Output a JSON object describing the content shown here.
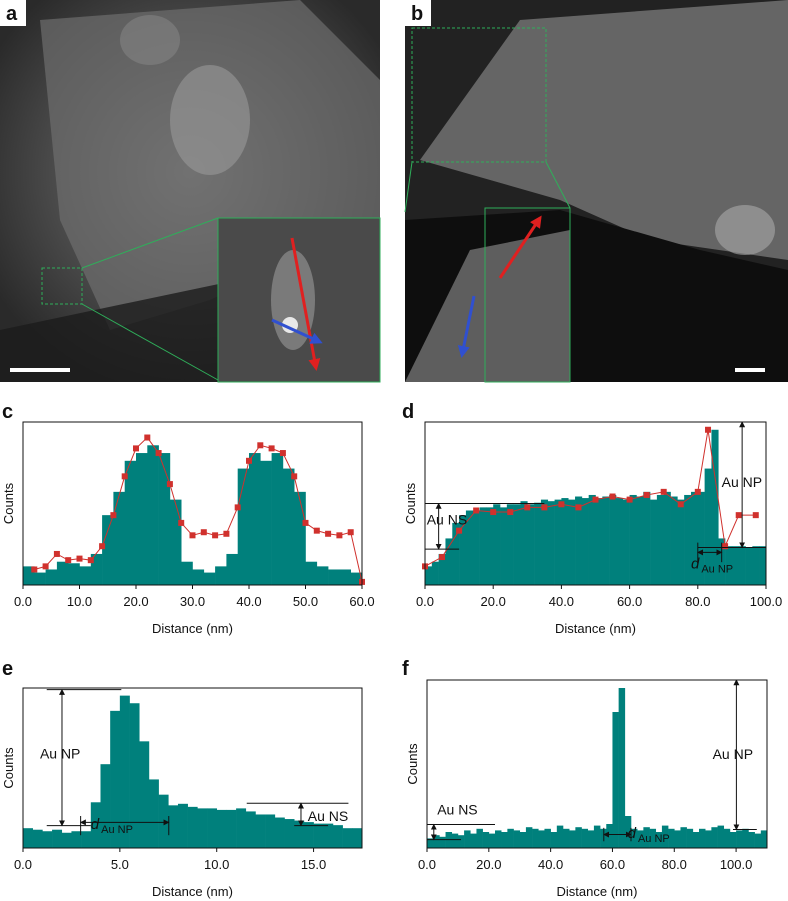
{
  "images": [
    {
      "label": "a"
    },
    {
      "label": "b"
    }
  ],
  "chart_data": [
    {
      "type": "histogram",
      "panel_label": "c",
      "xlabel": "Distance (nm)",
      "ylabel": "Counts",
      "xlim": [
        0,
        60
      ],
      "ylim": [
        0,
        105
      ],
      "xticks": [
        {
          "value": 0,
          "label": "0.0"
        },
        {
          "value": 10,
          "label": "10.0"
        },
        {
          "value": 20,
          "label": "20.0"
        },
        {
          "value": 30,
          "label": "30.0"
        },
        {
          "value": 40,
          "label": "40.0"
        },
        {
          "value": 50,
          "label": "50.0"
        },
        {
          "value": 60,
          "label": "60.0"
        }
      ],
      "bins": [
        0,
        2,
        4,
        6,
        8,
        10,
        12,
        14,
        16,
        18,
        20,
        22,
        24,
        26,
        28,
        30,
        32,
        34,
        36,
        38,
        40,
        42,
        44,
        46,
        48,
        50,
        52,
        54,
        56,
        58,
        60
      ],
      "values": [
        12,
        8,
        10,
        15,
        14,
        12,
        20,
        45,
        60,
        80,
        85,
        90,
        85,
        55,
        15,
        10,
        8,
        12,
        20,
        75,
        85,
        80,
        85,
        75,
        60,
        15,
        12,
        10,
        10,
        8
      ],
      "color": "#00807c",
      "line": {
        "color": "#d0312d",
        "x": [
          2,
          4,
          6,
          8,
          10,
          12,
          14,
          16,
          18,
          20,
          22,
          24,
          26,
          28,
          30,
          32,
          34,
          36,
          38,
          40,
          42,
          44,
          46,
          48,
          50,
          52,
          54,
          56,
          58,
          60
        ],
        "values": [
          10,
          12,
          20,
          16,
          17,
          16,
          25,
          45,
          70,
          88,
          95,
          85,
          65,
          40,
          32,
          34,
          32,
          33,
          50,
          80,
          90,
          88,
          85,
          70,
          40,
          35,
          33,
          32,
          34,
          2
        ]
      },
      "annotations": []
    },
    {
      "type": "histogram",
      "panel_label": "d",
      "xlabel": "Distance (nm)",
      "ylabel": "Counts",
      "xlim": [
        0,
        100
      ],
      "ylim": [
        0,
        105
      ],
      "xticks": [
        {
          "value": 0,
          "label": "0.0"
        },
        {
          "value": 20,
          "label": "20.0"
        },
        {
          "value": 40,
          "label": "40.0"
        },
        {
          "value": 60,
          "label": "60.0"
        },
        {
          "value": 80,
          "label": "80.0"
        },
        {
          "value": 100,
          "label": "100.0"
        }
      ],
      "bins": [
        0,
        2,
        4,
        6,
        8,
        10,
        12,
        14,
        16,
        18,
        20,
        22,
        24,
        26,
        28,
        30,
        32,
        34,
        36,
        38,
        40,
        42,
        44,
        46,
        48,
        50,
        52,
        54,
        56,
        58,
        60,
        62,
        64,
        66,
        68,
        70,
        72,
        74,
        76,
        78,
        80,
        82,
        84,
        86,
        88,
        90,
        92,
        94,
        96,
        98,
        100
      ],
      "values": [
        12,
        15,
        20,
        30,
        40,
        45,
        48,
        48,
        50,
        50,
        52,
        50,
        52,
        52,
        54,
        52,
        53,
        55,
        54,
        55,
        56,
        55,
        57,
        56,
        58,
        56,
        57,
        58,
        56,
        55,
        58,
        57,
        60,
        55,
        58,
        60,
        57,
        55,
        58,
        60,
        60,
        75,
        100,
        30,
        25,
        25,
        25,
        24,
        25,
        25
      ],
      "color": "#00807c",
      "line": {
        "color": "#d0312d",
        "x": [
          0,
          5,
          10,
          15,
          20,
          25,
          30,
          35,
          40,
          45,
          50,
          55,
          60,
          65,
          70,
          75,
          80,
          83,
          88,
          92,
          97
        ],
        "values": [
          12,
          18,
          35,
          48,
          47,
          47,
          50,
          50,
          52,
          50,
          55,
          57,
          55,
          58,
          60,
          52,
          60,
          100,
          25,
          45,
          45
        ]
      },
      "annotations": [
        {
          "text": "Au NS"
        },
        {
          "text": "Au NP"
        },
        {
          "text": "d",
          "subscript": "Au NP"
        }
      ]
    },
    {
      "type": "histogram",
      "panel_label": "e",
      "xlabel": "Distance (nm)",
      "ylabel": "Counts",
      "xlim": [
        0,
        17.5
      ],
      "ylim": [
        0,
        105
      ],
      "xticks": [
        {
          "value": 0,
          "label": "0.0"
        },
        {
          "value": 5,
          "label": "5.0"
        },
        {
          "value": 10,
          "label": "10.0"
        },
        {
          "value": 15,
          "label": "15.0"
        }
      ],
      "bins": [
        0,
        0.5,
        1,
        1.5,
        2,
        2.5,
        3,
        3.5,
        4,
        4.5,
        5,
        5.5,
        6,
        6.5,
        7,
        7.5,
        8,
        8.5,
        9,
        9.5,
        10,
        10.5,
        11,
        11.5,
        12,
        12.5,
        13,
        13.5,
        14,
        14.5,
        15,
        15.5,
        16,
        16.5,
        17,
        17.5
      ],
      "values": [
        13,
        12,
        11,
        12,
        10,
        11,
        11,
        30,
        55,
        90,
        100,
        95,
        70,
        45,
        35,
        28,
        29,
        27,
        26,
        26,
        25,
        25,
        26,
        24,
        22,
        22,
        20,
        19,
        18,
        17,
        16,
        16,
        15,
        13,
        13
      ],
      "color": "#00807c",
      "annotations": [
        {
          "text": "Au NP"
        },
        {
          "text": "Au NS"
        },
        {
          "text": "d",
          "subscript": "Au NP"
        }
      ]
    },
    {
      "type": "histogram",
      "panel_label": "f",
      "xlabel": "Distance (nm)",
      "ylabel": "Counts",
      "xlim": [
        0,
        110
      ],
      "ylim": [
        0,
        105
      ],
      "xticks": [
        {
          "value": 0,
          "label": "0.0"
        },
        {
          "value": 20,
          "label": "20.0"
        },
        {
          "value": 40,
          "label": "40.0"
        },
        {
          "value": 60,
          "label": "60.0"
        },
        {
          "value": 80,
          "label": "80.0"
        },
        {
          "value": 100,
          "label": "100.0"
        }
      ],
      "bins": [
        0,
        2,
        4,
        6,
        8,
        10,
        12,
        14,
        16,
        18,
        20,
        22,
        24,
        26,
        28,
        30,
        32,
        34,
        36,
        38,
        40,
        42,
        44,
        46,
        48,
        50,
        52,
        54,
        56,
        58,
        60,
        62,
        64,
        66,
        68,
        70,
        72,
        74,
        76,
        78,
        80,
        82,
        84,
        86,
        88,
        90,
        92,
        94,
        96,
        98,
        100,
        102,
        104,
        106,
        108,
        110
      ],
      "values": [
        6,
        8,
        7,
        10,
        9,
        8,
        11,
        9,
        12,
        10,
        9,
        11,
        10,
        12,
        11,
        10,
        13,
        12,
        11,
        12,
        10,
        14,
        12,
        11,
        13,
        12,
        11,
        14,
        12,
        15,
        85,
        100,
        20,
        12,
        11,
        13,
        12,
        10,
        14,
        12,
        11,
        13,
        12,
        10,
        12,
        11,
        13,
        14,
        12,
        10,
        11,
        12,
        10,
        9,
        11
      ],
      "color": "#00807c",
      "annotations": [
        {
          "text": "Au NS"
        },
        {
          "text": "Au NP"
        },
        {
          "text": "d",
          "subscript": "Au NP"
        }
      ]
    }
  ]
}
